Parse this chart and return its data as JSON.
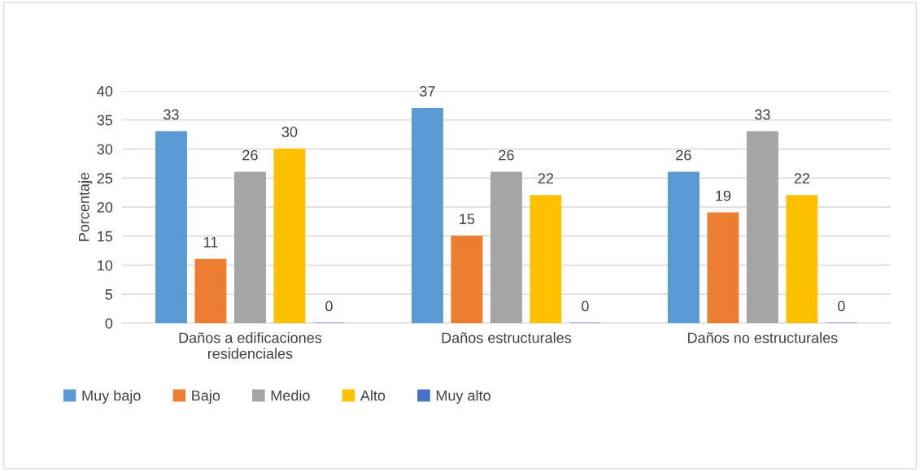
{
  "chart_data": {
    "type": "bar",
    "ylabel": "Porcentaje",
    "categories": [
      "Daños a edificaciones\nresidenciales",
      "Daños estructurales",
      "Daños no estructurales"
    ],
    "series": [
      {
        "name": "Muy bajo",
        "color": "#5b9bd5",
        "values": [
          33,
          37,
          26
        ]
      },
      {
        "name": "Bajo",
        "color": "#ed7d31",
        "values": [
          11,
          15,
          19
        ]
      },
      {
        "name": "Medio",
        "color": "#a5a5a5",
        "values": [
          26,
          26,
          33
        ]
      },
      {
        "name": "Alto",
        "color": "#ffc000",
        "values": [
          30,
          22,
          22
        ]
      },
      {
        "name": "Muy alto",
        "color": "#4472c4",
        "values": [
          0,
          0,
          0
        ]
      }
    ],
    "ylim": [
      0,
      40
    ],
    "yticks": [
      0,
      5,
      10,
      15,
      20,
      25,
      30,
      35,
      40
    ],
    "grid": "y",
    "legend": "bottom",
    "data_labels": true
  }
}
